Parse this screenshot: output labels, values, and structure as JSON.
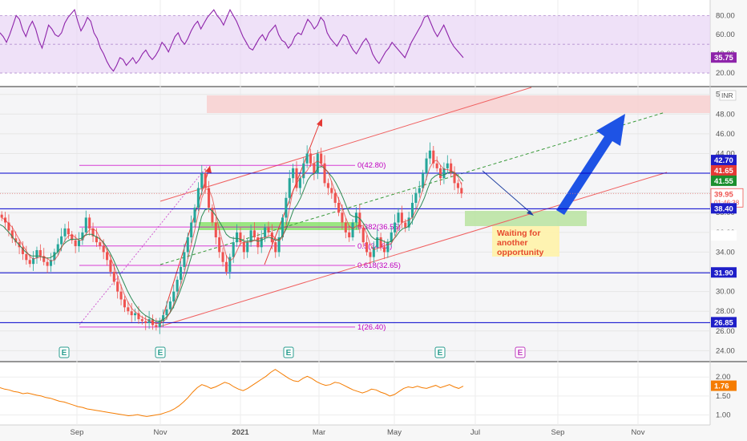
{
  "chart_data": [
    {
      "type": "line",
      "title": "",
      "xlabel": "",
      "ylabel": "",
      "x_ticks": [
        "Sep",
        "Nov",
        "2021",
        "Mar",
        "May",
        "Jul",
        "Sep",
        "Nov"
      ],
      "y_ticks": [
        80,
        60,
        40,
        20
      ],
      "ylim": [
        10,
        92
      ],
      "band": [
        20,
        80
      ],
      "last_value": "35.75",
      "series": [
        {
          "values": [
            62,
            58,
            52,
            60,
            70,
            80,
            76,
            65,
            58,
            68,
            74,
            66,
            54,
            46,
            58,
            70,
            66,
            60,
            58,
            62,
            72,
            78,
            82,
            86,
            74,
            64,
            70,
            78,
            74,
            62,
            56,
            46,
            40,
            32,
            26,
            22,
            28,
            36,
            34,
            28,
            32,
            36,
            30,
            34,
            40,
            44,
            38,
            34,
            38,
            44,
            52,
            48,
            42,
            50,
            58,
            62,
            54,
            50,
            56,
            64,
            70,
            74,
            66,
            72,
            78,
            82,
            86,
            80,
            76,
            70,
            78,
            86,
            80,
            74,
            66,
            58,
            52,
            46,
            44,
            50,
            56,
            60,
            54,
            62,
            66,
            70,
            60,
            54,
            52,
            46,
            50,
            58,
            62,
            60,
            68,
            76,
            72,
            66,
            70,
            78,
            74,
            62,
            56,
            52,
            48,
            54,
            60,
            58,
            50,
            44,
            40,
            46,
            52,
            56,
            50,
            40,
            34,
            30,
            36,
            42,
            46,
            52,
            48,
            44,
            40,
            36,
            44,
            52,
            58,
            64,
            70,
            78,
            80,
            72,
            64,
            58,
            64,
            70,
            62,
            54,
            48,
            44,
            40,
            36
          ]
        }
      ]
    },
    {
      "type": "line",
      "title": "",
      "xlabel": "",
      "ylabel": "",
      "currency": "INR",
      "x_ticks": [
        "Sep",
        "Nov",
        "2021",
        "Mar",
        "May",
        "Jul",
        "Sep",
        "Nov"
      ],
      "y_ticks": [
        50.0,
        48.0,
        46.0,
        44.0,
        42.0,
        40.0,
        38.0,
        36.0,
        34.0,
        32.0,
        30.0,
        28.0,
        26.0,
        24.0
      ],
      "ylim": [
        23.3,
        50.3
      ],
      "series": [
        {
          "name": "",
          "values": [
            37.5,
            37.0,
            36.2,
            35.4,
            35.0,
            34.5,
            33.8,
            33.2,
            32.8,
            33.4,
            34.2,
            33.6,
            33.0,
            32.6,
            33.2,
            34.0,
            34.8,
            35.6,
            36.4,
            35.8,
            35.2,
            34.6,
            35.2,
            36.0,
            37.5,
            36.4,
            35.6,
            35.0,
            34.6,
            34.0,
            33.2,
            32.0,
            31.0,
            30.0,
            29.2,
            28.4,
            28.0,
            27.6,
            27.8,
            27.2,
            27.0,
            26.8,
            27.2,
            26.6,
            26.4,
            27.0,
            27.6,
            28.2,
            29.0,
            30.0,
            31.2,
            32.5,
            34.0,
            35.5,
            37.0,
            38.5,
            40.5,
            42.0,
            40.5,
            38.5,
            37.0,
            35.5,
            34.0,
            33.0,
            32.0,
            33.5,
            35.0,
            36.0,
            35.0,
            34.0,
            35.0,
            36.2,
            35.5,
            34.5,
            35.5,
            36.5,
            36.0,
            35.0,
            34.0,
            35.5,
            37.5,
            39.5,
            41.5,
            42.5,
            40.5,
            41.5,
            43.0,
            44.0,
            43.0,
            42.0,
            44.0,
            43.0,
            41.0,
            40.5,
            40.0,
            39.0,
            38.0,
            37.0,
            36.0,
            35.5,
            37.0,
            38.0,
            36.5,
            35.0,
            34.0,
            33.5,
            34.5,
            35.5,
            34.5,
            34.0,
            35.0,
            36.0,
            37.0,
            38.0,
            37.0,
            36.5,
            37.5,
            39.0,
            40.0,
            40.5,
            42.0,
            43.5,
            44.3,
            43.0,
            42.5,
            41.5,
            42.5,
            43.0,
            42.0,
            41.0,
            40.5,
            39.95
          ]
        },
        {
          "name": "",
          "values": [
            36.8,
            36.6,
            36.2,
            35.8,
            35.3,
            34.9,
            34.5,
            34.1,
            33.8,
            33.6,
            33.6,
            33.6,
            33.5,
            33.4,
            33.4,
            33.6,
            33.9,
            34.3,
            34.8,
            35.1,
            35.3,
            35.3,
            35.3,
            35.4,
            35.7,
            35.8,
            35.8,
            35.6,
            35.4,
            35.1,
            34.6,
            34.0,
            33.3,
            32.5,
            31.7,
            30.9,
            30.1,
            29.4,
            28.8,
            28.3,
            27.9,
            27.6,
            27.4,
            27.2,
            27.0,
            27.0,
            27.1,
            27.4,
            27.8,
            28.4,
            29.2,
            30.1,
            31.1,
            32.2,
            33.4,
            34.7,
            36.1,
            37.6,
            38.3,
            38.4,
            38.2,
            37.7,
            37.1,
            36.5,
            35.8,
            35.5,
            35.4,
            35.4,
            35.3,
            35.1,
            35.1,
            35.2,
            35.2,
            35.1,
            35.2,
            35.4,
            35.5,
            35.4,
            35.2,
            35.3,
            35.7,
            36.4,
            37.3,
            38.3,
            38.8,
            39.5,
            40.4,
            41.3,
            41.8,
            42.0,
            42.6,
            42.7,
            42.4,
            42.0,
            41.6,
            41.0,
            40.3,
            39.5,
            38.6,
            37.8,
            37.6,
            37.6,
            37.3,
            36.8,
            36.2,
            35.6,
            35.3,
            35.3,
            35.2,
            35.0,
            35.0,
            35.2,
            35.6,
            36.1,
            36.4,
            36.5,
            36.8,
            37.4,
            38.1,
            38.7,
            39.5,
            40.5,
            41.4,
            41.7,
            41.9,
            41.8,
            41.9,
            42.1,
            42.1,
            41.9,
            41.6,
            41.2
          ]
        }
      ],
      "levels": [
        "42.70",
        "41.65",
        "41.55",
        "39.95",
        "38.40",
        "35.65",
        "31.90",
        "26.85"
      ],
      "countdown": "01:46:38",
      "fib_labels": [
        "0(42.80)",
        "0.382(36.55)",
        "0.5(34.62)",
        "0.618(32.65)",
        "1(26.40)"
      ],
      "earnings_markers": [
        "E",
        "E",
        "E",
        "E",
        "E"
      ]
    },
    {
      "type": "line",
      "title": "",
      "xlabel": "",
      "ylabel": "",
      "x_ticks": [
        "Sep",
        "Nov",
        "2021",
        "Mar",
        "May",
        "Jul",
        "Sep",
        "Nov"
      ],
      "y_ticks": [
        2.0,
        1.5,
        1.0
      ],
      "ylim": [
        0.8,
        2.3
      ],
      "last_value": "1.76",
      "series": [
        {
          "values": [
            1.72,
            1.68,
            1.66,
            1.62,
            1.6,
            1.56,
            1.58,
            1.55,
            1.52,
            1.5,
            1.46,
            1.44,
            1.4,
            1.36,
            1.34,
            1.3,
            1.26,
            1.22,
            1.2,
            1.16,
            1.14,
            1.12,
            1.1,
            1.08,
            1.06,
            1.04,
            1.02,
            1.0,
            0.98,
            0.99,
            1.01,
            0.98,
            0.96,
            0.98,
            1.0,
            1.02,
            1.06,
            1.1,
            1.16,
            1.24,
            1.34,
            1.46,
            1.6,
            1.72,
            1.8,
            1.76,
            1.7,
            1.74,
            1.8,
            1.86,
            1.82,
            1.74,
            1.68,
            1.64,
            1.7,
            1.78,
            1.86,
            1.94,
            2.02,
            2.12,
            2.2,
            2.12,
            2.04,
            1.96,
            1.9,
            1.88,
            1.96,
            2.02,
            1.96,
            1.88,
            1.82,
            1.78,
            1.8,
            1.86,
            1.84,
            1.78,
            1.72,
            1.66,
            1.62,
            1.58,
            1.62,
            1.68,
            1.66,
            1.6,
            1.56,
            1.5,
            1.54,
            1.62,
            1.7,
            1.74,
            1.72,
            1.76,
            1.72,
            1.7,
            1.74,
            1.78,
            1.72,
            1.76,
            1.8,
            1.74,
            1.7,
            1.76
          ]
        }
      ]
    }
  ],
  "annotations": {
    "note_lines": [
      "Waiting for",
      "another",
      "opportunity"
    ]
  },
  "colors": {
    "rsi": "#8e24aa",
    "rsi_band": "#e8d4f5",
    "price_up": "#26a69a",
    "price_down": "#ef5350",
    "ma_fast": "#e53935",
    "ma_slow": "#2e8b57",
    "horizontal_level": "#0000cc",
    "fib": "#cc00cc",
    "arrow": "#1e53e5",
    "ratio_line": "#f57c00",
    "support_zone": "#8fd14f",
    "resistance_zone": "#f5c6c6",
    "note_box": "#fff5b0"
  }
}
